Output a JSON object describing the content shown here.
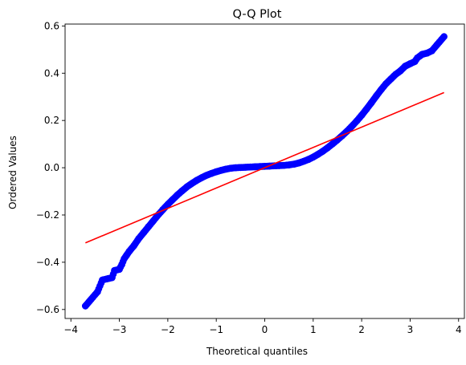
{
  "chart_data": {
    "type": "scatter",
    "title": "Q-Q Plot",
    "xlabel": "Theoretical quantiles",
    "ylabel": "Ordered Values",
    "xlim": [
      -4.12,
      4.12
    ],
    "ylim": [
      -0.638,
      0.608
    ],
    "grid": false,
    "legend": "none",
    "x_ticks": [
      -4,
      -3,
      -2,
      -1,
      0,
      1,
      2,
      3,
      4
    ],
    "x_tick_labels": [
      "−4",
      "−3",
      "−2",
      "−1",
      "0",
      "1",
      "2",
      "3",
      "4"
    ],
    "y_ticks": [
      -0.6,
      -0.4,
      -0.2,
      0.0,
      0.2,
      0.4,
      0.6
    ],
    "y_tick_labels": [
      "−0.6",
      "−0.4",
      "−0.2",
      "0.0",
      "0.2",
      "0.4",
      "0.6"
    ],
    "series": [
      {
        "kind": "points",
        "color": "#0000ff",
        "x": [
          -3.7,
          -3.45,
          -3.35,
          -3.25,
          -3.15,
          -3.1,
          -3.0,
          -2.95,
          -2.9,
          -2.85,
          -2.8,
          -2.7,
          -2.6,
          -2.5,
          -2.4,
          -2.3,
          -2.2,
          -2.1,
          -2.0,
          -1.9,
          -1.8,
          -1.7,
          -1.6,
          -1.5,
          -1.4,
          -1.3,
          -1.2,
          -1.1,
          -1.0,
          -0.9,
          -0.8,
          -0.7,
          -0.6,
          -0.5,
          -0.4,
          -0.3,
          -0.2,
          -0.1,
          0.0,
          0.1,
          0.2,
          0.3,
          0.4,
          0.5,
          0.6,
          0.7,
          0.8,
          0.9,
          1.0,
          1.1,
          1.2,
          1.3,
          1.4,
          1.5,
          1.6,
          1.7,
          1.8,
          1.9,
          2.0,
          2.1,
          2.2,
          2.3,
          2.4,
          2.5,
          2.6,
          2.7,
          2.8,
          2.9,
          3.0,
          3.1,
          3.15,
          3.25,
          3.35,
          3.45,
          3.7
        ],
        "y": [
          -0.585,
          -0.525,
          -0.475,
          -0.47,
          -0.465,
          -0.435,
          -0.43,
          -0.41,
          -0.385,
          -0.37,
          -0.355,
          -0.33,
          -0.3,
          -0.275,
          -0.25,
          -0.225,
          -0.2,
          -0.177,
          -0.155,
          -0.135,
          -0.115,
          -0.097,
          -0.08,
          -0.066,
          -0.053,
          -0.042,
          -0.032,
          -0.024,
          -0.017,
          -0.011,
          -0.006,
          -0.002,
          0.0,
          0.001,
          0.002,
          0.003,
          0.004,
          0.005,
          0.006,
          0.007,
          0.008,
          0.009,
          0.01,
          0.012,
          0.015,
          0.02,
          0.027,
          0.035,
          0.045,
          0.057,
          0.07,
          0.085,
          0.101,
          0.118,
          0.136,
          0.155,
          0.176,
          0.198,
          0.222,
          0.248,
          0.275,
          0.303,
          0.33,
          0.355,
          0.375,
          0.395,
          0.41,
          0.43,
          0.44,
          0.45,
          0.465,
          0.48,
          0.485,
          0.495,
          0.555
        ]
      },
      {
        "kind": "line",
        "color": "#ff0000",
        "x": [
          -3.7,
          3.7
        ],
        "y": [
          -0.318,
          0.318
        ]
      }
    ]
  }
}
